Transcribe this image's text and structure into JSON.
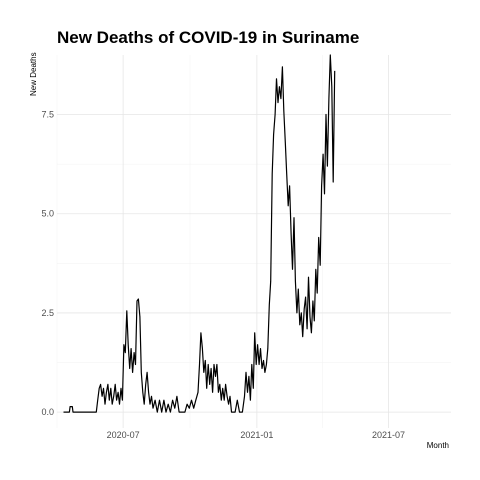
{
  "chart_data": {
    "type": "line",
    "title": "New Deaths of COVID-19 in Suriname",
    "xlabel": "Month",
    "ylabel": "New Deaths",
    "x_axis": "date",
    "xlim": [
      "2020-04-01",
      "2021-09-25"
    ],
    "ylim": [
      -0.4,
      9.0
    ],
    "x_ticks": [
      {
        "date": "2020-07-01",
        "label": "2020-07"
      },
      {
        "date": "2021-01-01",
        "label": "2021-01"
      },
      {
        "date": "2021-07-01",
        "label": "2021-07"
      }
    ],
    "y_ticks": [
      {
        "value": 0,
        "label": "0.0"
      },
      {
        "value": 2.5,
        "label": "2.5"
      },
      {
        "value": 5,
        "label": "5.0"
      },
      {
        "value": 7.5,
        "label": "7.5"
      }
    ],
    "grid": true,
    "legend": "none",
    "line_color": "#000000",
    "series": [
      {
        "points": [
          [
            "2020-04-10",
            0
          ],
          [
            "2020-04-18",
            0
          ],
          [
            "2020-04-19",
            0.14
          ],
          [
            "2020-04-22",
            0.14
          ],
          [
            "2020-04-23",
            0
          ],
          [
            "2020-05-25",
            0
          ],
          [
            "2020-05-27",
            0.3
          ],
          [
            "2020-05-29",
            0.6
          ],
          [
            "2020-05-31",
            0.7
          ],
          [
            "2020-06-02",
            0.4
          ],
          [
            "2020-06-04",
            0.6
          ],
          [
            "2020-06-06",
            0.2
          ],
          [
            "2020-06-08",
            0.5
          ],
          [
            "2020-06-10",
            0.7
          ],
          [
            "2020-06-12",
            0.3
          ],
          [
            "2020-06-14",
            0.6
          ],
          [
            "2020-06-16",
            0.2
          ],
          [
            "2020-06-18",
            0.4
          ],
          [
            "2020-06-20",
            0.7
          ],
          [
            "2020-06-22",
            0.3
          ],
          [
            "2020-06-24",
            0.5
          ],
          [
            "2020-06-26",
            0.2
          ],
          [
            "2020-06-28",
            0.6
          ],
          [
            "2020-06-30",
            0.3
          ],
          [
            "2020-07-02",
            1.7
          ],
          [
            "2020-07-04",
            1.5
          ],
          [
            "2020-07-06",
            2.55
          ],
          [
            "2020-07-08",
            1.7
          ],
          [
            "2020-07-10",
            1.1
          ],
          [
            "2020-07-12",
            1.6
          ],
          [
            "2020-07-14",
            1.0
          ],
          [
            "2020-07-16",
            1.5
          ],
          [
            "2020-07-18",
            1.2
          ],
          [
            "2020-07-20",
            2.8
          ],
          [
            "2020-07-22",
            2.85
          ],
          [
            "2020-07-24",
            2.4
          ],
          [
            "2020-07-26",
            1.0
          ],
          [
            "2020-07-28",
            0.5
          ],
          [
            "2020-07-30",
            0.2
          ],
          [
            "2020-08-01",
            0.7
          ],
          [
            "2020-08-03",
            1.0
          ],
          [
            "2020-08-05",
            0.5
          ],
          [
            "2020-08-07",
            0.2
          ],
          [
            "2020-08-09",
            0.4
          ],
          [
            "2020-08-11",
            0.1
          ],
          [
            "2020-08-14",
            0.3
          ],
          [
            "2020-08-17",
            0
          ],
          [
            "2020-08-20",
            0.3
          ],
          [
            "2020-08-23",
            0
          ],
          [
            "2020-08-26",
            0.3
          ],
          [
            "2020-08-29",
            0
          ],
          [
            "2020-09-01",
            0.2
          ],
          [
            "2020-09-04",
            0
          ],
          [
            "2020-09-07",
            0.3
          ],
          [
            "2020-09-10",
            0.1
          ],
          [
            "2020-09-13",
            0.4
          ],
          [
            "2020-09-16",
            0
          ],
          [
            "2020-09-24",
            0
          ],
          [
            "2020-09-27",
            0.2
          ],
          [
            "2020-09-30",
            0.1
          ],
          [
            "2020-10-03",
            0.3
          ],
          [
            "2020-10-06",
            0.1
          ],
          [
            "2020-10-09",
            0.3
          ],
          [
            "2020-10-12",
            0.5
          ],
          [
            "2020-10-14",
            1.2
          ],
          [
            "2020-10-16",
            2.0
          ],
          [
            "2020-10-18",
            1.6
          ],
          [
            "2020-10-20",
            1.0
          ],
          [
            "2020-10-22",
            1.3
          ],
          [
            "2020-10-24",
            0.6
          ],
          [
            "2020-10-26",
            1.2
          ],
          [
            "2020-10-28",
            0.7
          ],
          [
            "2020-10-30",
            1.1
          ],
          [
            "2020-11-01",
            0.5
          ],
          [
            "2020-11-03",
            1.2
          ],
          [
            "2020-11-05",
            0.9
          ],
          [
            "2020-11-07",
            1.2
          ],
          [
            "2020-11-09",
            0.5
          ],
          [
            "2020-11-11",
            0.7
          ],
          [
            "2020-11-13",
            0.3
          ],
          [
            "2020-11-15",
            0.6
          ],
          [
            "2020-11-17",
            0.3
          ],
          [
            "2020-11-19",
            0.7
          ],
          [
            "2020-11-21",
            0.4
          ],
          [
            "2020-11-23",
            0.2
          ],
          [
            "2020-11-25",
            0.4
          ],
          [
            "2020-11-27",
            0
          ],
          [
            "2020-12-02",
            0
          ],
          [
            "2020-12-05",
            0.3
          ],
          [
            "2020-12-08",
            0
          ],
          [
            "2020-12-12",
            0
          ],
          [
            "2020-12-15",
            0.4
          ],
          [
            "2020-12-17",
            1.0
          ],
          [
            "2020-12-19",
            0.5
          ],
          [
            "2020-12-21",
            0.9
          ],
          [
            "2020-12-23",
            0.3
          ],
          [
            "2020-12-25",
            1.2
          ],
          [
            "2020-12-27",
            0.6
          ],
          [
            "2020-12-29",
            2.0
          ],
          [
            "2020-12-31",
            1.2
          ],
          [
            "2021-01-02",
            1.7
          ],
          [
            "2021-01-04",
            1.2
          ],
          [
            "2021-01-06",
            1.6
          ],
          [
            "2021-01-08",
            1.1
          ],
          [
            "2021-01-10",
            1.3
          ],
          [
            "2021-01-12",
            1.0
          ],
          [
            "2021-01-14",
            1.2
          ],
          [
            "2021-01-16",
            1.6
          ],
          [
            "2021-01-18",
            2.7
          ],
          [
            "2021-01-20",
            3.3
          ],
          [
            "2021-01-22",
            6.0
          ],
          [
            "2021-01-24",
            7.0
          ],
          [
            "2021-01-26",
            7.5
          ],
          [
            "2021-01-28",
            8.4
          ],
          [
            "2021-01-30",
            7.8
          ],
          [
            "2021-02-01",
            8.2
          ],
          [
            "2021-02-03",
            7.9
          ],
          [
            "2021-02-05",
            8.7
          ],
          [
            "2021-02-07",
            7.6
          ],
          [
            "2021-02-09",
            6.8
          ],
          [
            "2021-02-11",
            6.0
          ],
          [
            "2021-02-13",
            5.2
          ],
          [
            "2021-02-15",
            5.7
          ],
          [
            "2021-02-17",
            4.5
          ],
          [
            "2021-02-19",
            3.6
          ],
          [
            "2021-02-21",
            4.9
          ],
          [
            "2021-02-23",
            3.3
          ],
          [
            "2021-02-25",
            2.5
          ],
          [
            "2021-02-27",
            3.1
          ],
          [
            "2021-03-01",
            2.2
          ],
          [
            "2021-03-03",
            2.5
          ],
          [
            "2021-03-05",
            1.9
          ],
          [
            "2021-03-07",
            2.6
          ],
          [
            "2021-03-09",
            2.9
          ],
          [
            "2021-03-11",
            2.1
          ],
          [
            "2021-03-13",
            3.4
          ],
          [
            "2021-03-15",
            2.4
          ],
          [
            "2021-03-17",
            2.0
          ],
          [
            "2021-03-19",
            2.8
          ],
          [
            "2021-03-21",
            2.3
          ],
          [
            "2021-03-23",
            3.6
          ],
          [
            "2021-03-25",
            3.0
          ],
          [
            "2021-03-27",
            4.4
          ],
          [
            "2021-03-29",
            3.7
          ],
          [
            "2021-03-31",
            5.7
          ],
          [
            "2021-04-02",
            6.5
          ],
          [
            "2021-04-04",
            5.5
          ],
          [
            "2021-04-06",
            7.5
          ],
          [
            "2021-04-08",
            6.2
          ],
          [
            "2021-04-10",
            7.9
          ],
          [
            "2021-04-12",
            9.0
          ],
          [
            "2021-04-14",
            8.2
          ],
          [
            "2021-04-16",
            5.8
          ],
          [
            "2021-04-18",
            8.6
          ]
        ]
      }
    ]
  }
}
